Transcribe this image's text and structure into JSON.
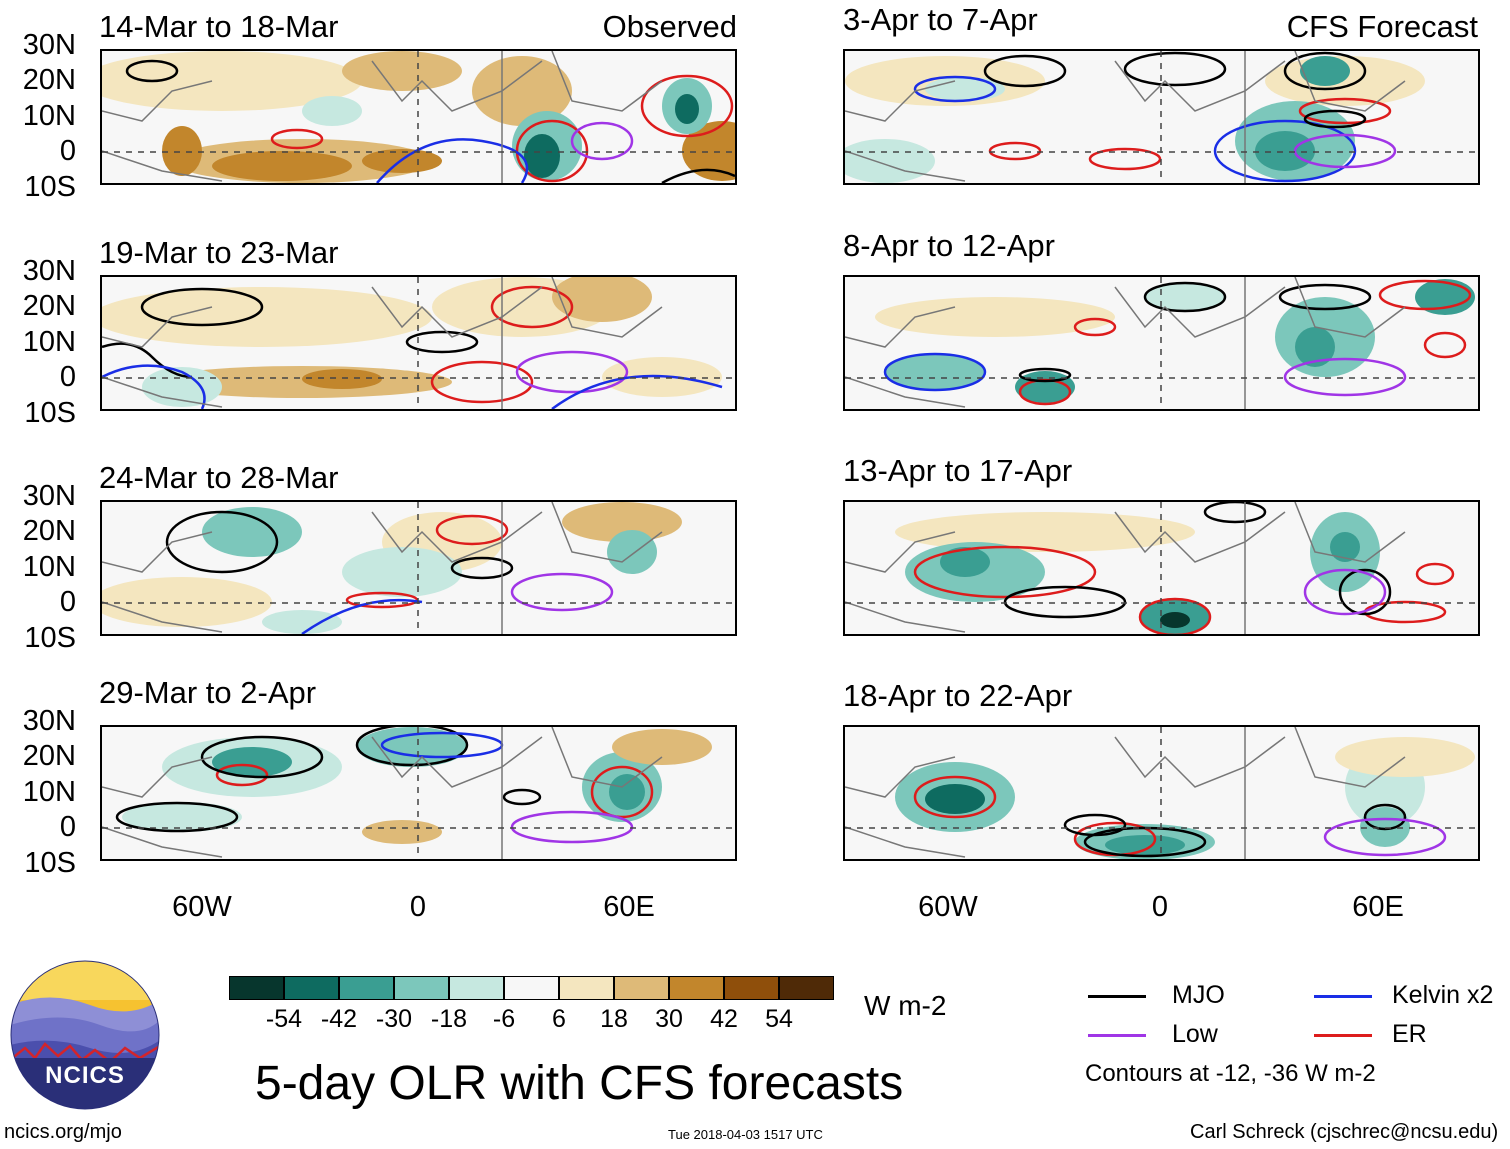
{
  "panels_left": [
    {
      "title": "14-Mar to 18-Mar",
      "tag": "Observed"
    },
    {
      "title": "19-Mar to 23-Mar",
      "tag": ""
    },
    {
      "title": "24-Mar to 28-Mar",
      "tag": ""
    },
    {
      "title": "29-Mar to 2-Apr",
      "tag": ""
    }
  ],
  "panels_right": [
    {
      "title": "3-Apr to 7-Apr",
      "tag": "CFS Forecast"
    },
    {
      "title": "8-Apr to 12-Apr",
      "tag": ""
    },
    {
      "title": "13-Apr to 17-Apr",
      "tag": ""
    },
    {
      "title": "18-Apr to 22-Apr",
      "tag": ""
    }
  ],
  "lat_labels": [
    "30N",
    "20N",
    "10N",
    "0",
    "10S"
  ],
  "lon_labels": [
    "60W",
    "0",
    "60E"
  ],
  "colorbar": {
    "unit": "W m-2",
    "ticks": [
      "-54",
      "-42",
      "-30",
      "-18",
      "-6",
      "6",
      "18",
      "30",
      "42",
      "54"
    ],
    "colors": [
      "#07362d",
      "#0e6b60",
      "#3a9e92",
      "#7cc7bb",
      "#c6e8e0",
      "#f7f7f7",
      "#f4e6bf",
      "#deba78",
      "#c2862c",
      "#8f4f0b",
      "#4f2a07"
    ]
  },
  "legend": {
    "items": [
      {
        "label": "MJO",
        "color": "#000000"
      },
      {
        "label": "Kelvin x2",
        "color": "#1a2ee6"
      },
      {
        "label": "Low",
        "color": "#a035e6"
      },
      {
        "label": "ER",
        "color": "#dd1c1c"
      }
    ],
    "note": "Contours at -12, -36 W m-2"
  },
  "logo": {
    "text": "NCICS"
  },
  "main_title": "5-day OLR with CFS forecasts",
  "footer": {
    "url": "ncics.org/mjo",
    "timestamp": "Tue 2018-04-03 1517 UTC",
    "author": "Carl Schreck (cjschrec@ncsu.edu)"
  }
}
